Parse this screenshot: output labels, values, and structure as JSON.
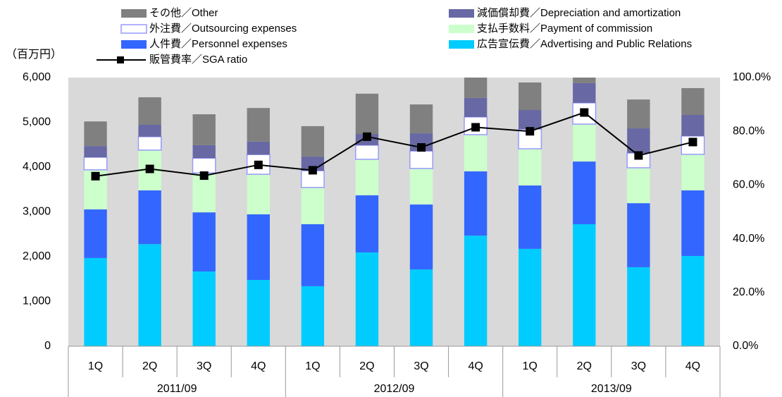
{
  "chart_data": {
    "type": "bar",
    "stacked": true,
    "y_unit_label": "（百万円）",
    "categories": [
      "1Q",
      "2Q",
      "3Q",
      "4Q",
      "1Q",
      "2Q",
      "3Q",
      "4Q",
      "1Q",
      "2Q",
      "3Q",
      "4Q"
    ],
    "groups": [
      "2011/09",
      "2012/09",
      "2013/09"
    ],
    "series": [
      {
        "name": "その他／Other",
        "color": "#808080",
        "values": [
          550,
          615,
          690,
          750,
          680,
          900,
          645,
          455,
          615,
          125,
          645,
          600
        ]
      },
      {
        "name": "減価償却費／Depreciation and amortization",
        "color": "#6868a4",
        "values": [
          250,
          265,
          290,
          290,
          315,
          250,
          395,
          425,
          425,
          440,
          550,
          470
        ]
      },
      {
        "name": "外注費／Outsourcing expenses",
        "color": "#ffffff",
        "edgecolor": "#9999ff",
        "values": [
          280,
          300,
          330,
          440,
          375,
          315,
          390,
          395,
          440,
          475,
          330,
          410
        ]
      },
      {
        "name": "支払手数料／Payment of commission",
        "color": "#ccffcc",
        "values": [
          885,
          900,
          880,
          895,
          820,
          805,
          805,
          820,
          820,
          835,
          790,
          805
        ]
      },
      {
        "name": "人件費／Personnel expenses",
        "color": "#3366ff",
        "values": [
          1085,
          1200,
          1320,
          1465,
          1385,
          1275,
          1450,
          1435,
          1415,
          1400,
          1430,
          1465
        ]
      },
      {
        "name": "広告宣伝費／Advertising and Public Relations",
        "color": "#00ccff",
        "values": [
          1970,
          2280,
          1670,
          1480,
          1340,
          2095,
          1715,
          2470,
          2175,
          2725,
          1765,
          2015
        ]
      },
      {
        "name": "販管費率／SGA ratio",
        "type": "line",
        "axis": "y2",
        "color": "#000000",
        "values": [
          63.3,
          66,
          63.5,
          67.5,
          65.5,
          78,
          74,
          81.5,
          80,
          87,
          71,
          76
        ]
      }
    ],
    "ylim": [
      0,
      6000
    ],
    "yticks": [
      0,
      {
        "value": 1000,
        "label": "1,000"
      },
      {
        "value": 2000,
        "label": "2,000"
      },
      {
        "value": 3000,
        "label": "3,000"
      },
      {
        "value": 4000,
        "label": "4,000"
      },
      {
        "value": 5000,
        "label": "5,000"
      },
      {
        "value": 6000,
        "label": "6,000"
      }
    ],
    "y2lim": [
      0,
      100
    ],
    "y2ticks": [
      {
        "value": 0,
        "label": "0.0%"
      },
      {
        "value": 20,
        "label": "20.0%"
      },
      {
        "value": 40,
        "label": "40.0%"
      },
      {
        "value": 60,
        "label": "60.0%"
      },
      {
        "value": 80,
        "label": "80.0%"
      },
      {
        "value": 100,
        "label": "100.0%"
      }
    ],
    "plot_background": "#d9d9d9"
  }
}
